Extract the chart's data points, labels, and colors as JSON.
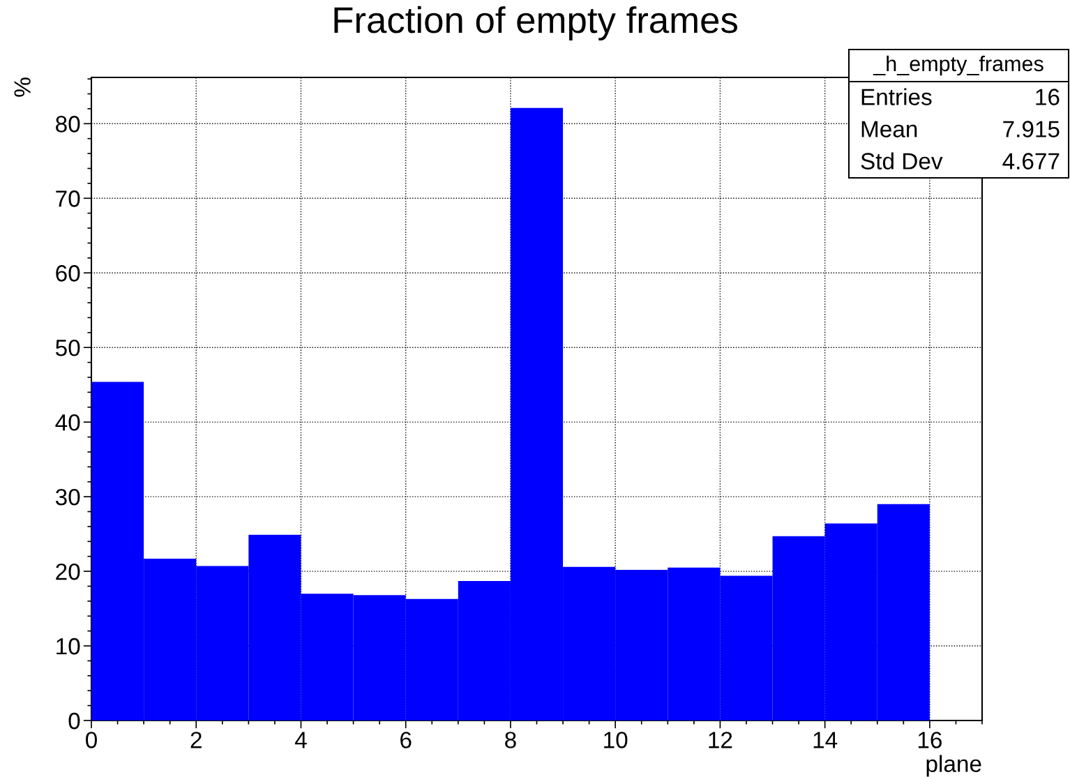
{
  "chart_data": {
    "type": "histogram",
    "title": "Fraction of empty frames",
    "xlabel": "plane",
    "ylabel": "%",
    "bins": [
      0,
      1,
      2,
      3,
      4,
      5,
      6,
      7,
      8,
      9,
      10,
      11,
      12,
      13,
      14,
      15,
      16
    ],
    "values": [
      45.4,
      21.7,
      20.7,
      24.9,
      17.0,
      16.8,
      16.3,
      18.7,
      82.1,
      20.6,
      20.2,
      20.5,
      19.4,
      24.7,
      26.4,
      29.0
    ],
    "color": "#0000ff",
    "xlim": [
      0,
      17
    ],
    "ylim": [
      0,
      86.2
    ],
    "xticks": [
      0,
      2,
      4,
      6,
      8,
      10,
      12,
      14,
      16
    ],
    "yticks": [
      0,
      10,
      20,
      30,
      40,
      50,
      60,
      70,
      80
    ],
    "grid": true,
    "annotations": [
      "_h_empty_frames",
      "Entries",
      "16",
      "Mean",
      "7.915",
      "Std Dev",
      "4.677"
    ]
  }
}
